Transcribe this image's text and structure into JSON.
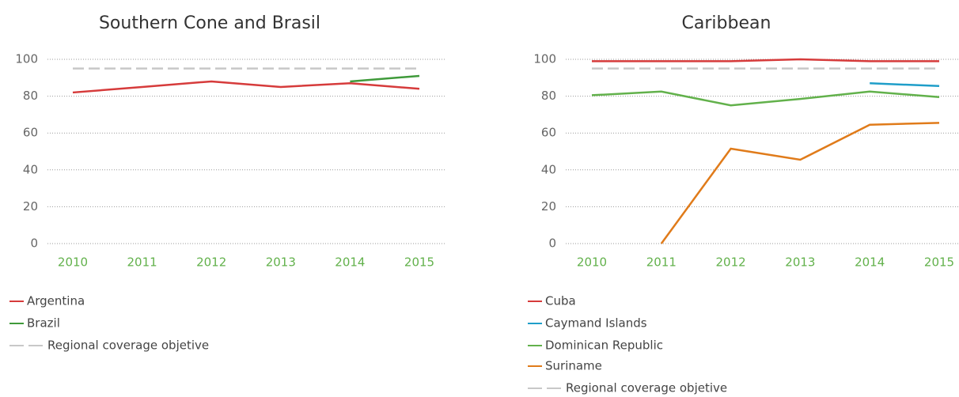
{
  "chart_data": [
    {
      "type": "line",
      "title": "Southern Cone and Brasil",
      "categories": [
        "2010",
        "2011",
        "2012",
        "2013",
        "2014",
        "2015"
      ],
      "ylim": [
        0,
        100
      ],
      "yticks": [
        0,
        20,
        40,
        60,
        80,
        100
      ],
      "grid": true,
      "series": [
        {
          "name": "Argentina",
          "color": "#d63b3b",
          "values": [
            82,
            85,
            88,
            85,
            87,
            84
          ]
        },
        {
          "name": "Brazil",
          "color": "#3f9a3a",
          "values": [
            null,
            null,
            null,
            null,
            88,
            91
          ]
        },
        {
          "name": "Regional coverage objetive",
          "color": "#c8c8c8",
          "dashed": true,
          "values": [
            95,
            95,
            95,
            95,
            95,
            95
          ]
        }
      ]
    },
    {
      "type": "line",
      "title": "Caribbean",
      "categories": [
        "2010",
        "2011",
        "2012",
        "2013",
        "2014",
        "2015"
      ],
      "ylim": [
        0,
        100
      ],
      "yticks": [
        0,
        20,
        40,
        60,
        80,
        100
      ],
      "grid": true,
      "series": [
        {
          "name": "Cuba",
          "color": "#d63b3b",
          "values": [
            99,
            99,
            99,
            100,
            99,
            99
          ]
        },
        {
          "name": "Caymand Islands",
          "color": "#1f9ec9",
          "values": [
            null,
            null,
            null,
            null,
            87,
            85.5
          ]
        },
        {
          "name": "Dominican Republic",
          "color": "#62b14b",
          "values": [
            80.5,
            82.5,
            75,
            78.5,
            82.5,
            79.5
          ]
        },
        {
          "name": "Suriname",
          "color": "#e07b1a",
          "values": [
            null,
            0,
            51.5,
            45.5,
            64.5,
            65.5
          ]
        },
        {
          "name": "Regional coverage objetive",
          "color": "#c8c8c8",
          "dashed": true,
          "values": [
            95,
            95,
            95,
            95,
            95,
            95
          ]
        }
      ]
    }
  ]
}
